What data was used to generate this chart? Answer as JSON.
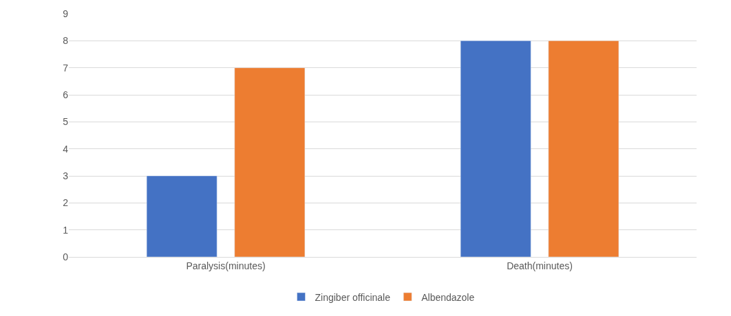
{
  "chart_data": {
    "type": "bar",
    "categories": [
      "Paralysis(minutes)",
      "Death(minutes)"
    ],
    "series": [
      {
        "name": "Zingiber officinale",
        "color": "#4472c4",
        "values": [
          3,
          8
        ]
      },
      {
        "name": "Albendazole",
        "color": "#ed7d31",
        "values": [
          7,
          8
        ]
      }
    ],
    "ylim": [
      0,
      9
    ],
    "yticks": [
      0,
      1,
      2,
      3,
      4,
      5,
      6,
      7,
      8,
      9
    ],
    "grid": "y",
    "legend": "bottom"
  }
}
